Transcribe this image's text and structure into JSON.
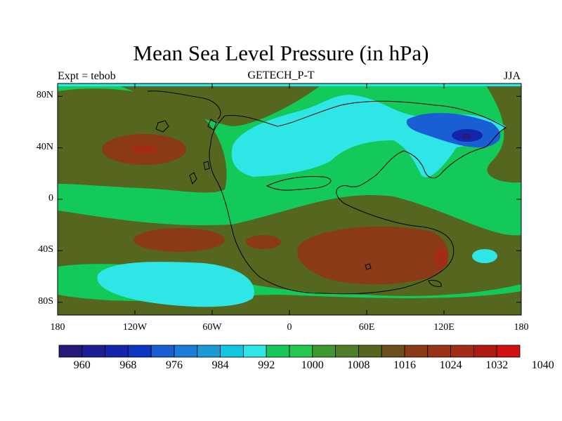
{
  "title": "Mean Sea Level Pressure (in hPa)",
  "subtitle": "GETECH_P-T",
  "left_label": "Expt = tebob",
  "right_label": "JJA",
  "map": {
    "projection": "cylindrical-equidistant",
    "lon_range": [
      -180,
      180
    ],
    "lat_range": [
      -90,
      90
    ]
  },
  "x_ticks": [
    {
      "value": -180,
      "label": "180"
    },
    {
      "value": -120,
      "label": "120W"
    },
    {
      "value": -60,
      "label": "60W"
    },
    {
      "value": 0,
      "label": "0"
    },
    {
      "value": 60,
      "label": "60E"
    },
    {
      "value": 120,
      "label": "120E"
    },
    {
      "value": 180,
      "label": "180"
    }
  ],
  "y_ticks": [
    {
      "value": 80,
      "label": "80N"
    },
    {
      "value": 40,
      "label": "40N"
    },
    {
      "value": 0,
      "label": "0"
    },
    {
      "value": -40,
      "label": "40S"
    },
    {
      "value": -80,
      "label": "80S"
    }
  ],
  "colorbar": {
    "colors": [
      "#231a7a",
      "#1d1e96",
      "#1225ab",
      "#0e36c2",
      "#1a5ed4",
      "#1a7dd6",
      "#1a9bd8",
      "#10c6e0",
      "#2fe6e6",
      "#16c85a",
      "#24c84e",
      "#3e9a30",
      "#4e7e28",
      "#55661e",
      "#6e4e1a",
      "#8a3a16",
      "#9a3416",
      "#a22c16",
      "#b01a12",
      "#d01210"
    ],
    "labels": [
      {
        "pos": 1,
        "text": "960"
      },
      {
        "pos": 3,
        "text": "968"
      },
      {
        "pos": 5,
        "text": "976"
      },
      {
        "pos": 7,
        "text": "984"
      },
      {
        "pos": 9,
        "text": "992"
      },
      {
        "pos": 11,
        "text": "1000"
      },
      {
        "pos": 13,
        "text": "1008"
      },
      {
        "pos": 15,
        "text": "1016"
      },
      {
        "pos": 17,
        "text": "1024"
      },
      {
        "pos": 19,
        "text": "1032"
      },
      {
        "pos": 21,
        "text": "1040"
      }
    ]
  },
  "fields": {
    "background_color": "#13c95a",
    "high_pressure_color": "#55661e",
    "strong_high_color": "#8a3a16",
    "low_pressure_color": "#2fe6e6",
    "deep_low_color": "#1a5ed4",
    "deepest_low_color": "#1225ab"
  }
}
